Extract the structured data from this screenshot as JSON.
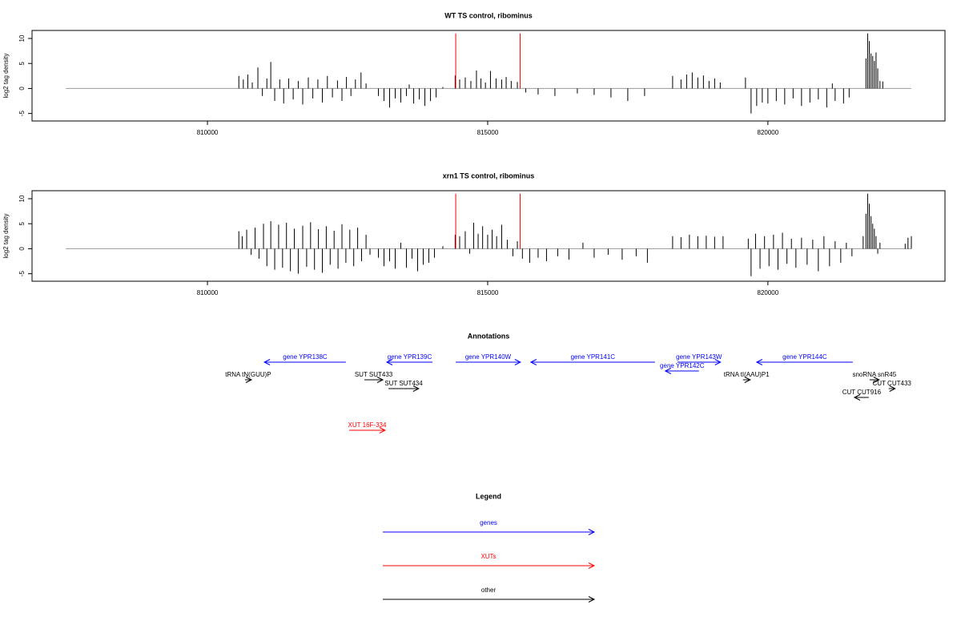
{
  "chart_data": [
    {
      "type": "bar",
      "title": "WT TS control, ribominus",
      "y_label": "log2 tag density",
      "color": "#000000",
      "xlim": [
        806870,
        823160
      ],
      "ylim": [
        -6.5,
        11.6
      ],
      "xticks": [
        810000,
        815000,
        820000
      ],
      "yticks": [
        10,
        5,
        0,
        -5
      ],
      "x": [
        810560,
        810640,
        810720,
        810800,
        810900,
        810980,
        811060,
        811130,
        811200,
        811290,
        811360,
        811450,
        811530,
        811620,
        811700,
        811800,
        811880,
        811970,
        812050,
        812140,
        812230,
        812320,
        812400,
        812480,
        812560,
        812640,
        812740,
        812830,
        813050,
        813150,
        813250,
        813350,
        813450,
        813550,
        813600,
        813680,
        813780,
        813880,
        813980,
        814080,
        814200,
        814420,
        814500,
        814600,
        814700,
        814800,
        814880,
        814960,
        815050,
        815150,
        815250,
        815330,
        815420,
        815530,
        815680,
        815900,
        816200,
        816600,
        816900,
        817200,
        817500,
        817800,
        818300,
        818450,
        818550,
        818650,
        818750,
        818850,
        818950,
        819050,
        819150,
        819600,
        819700,
        819800,
        819900,
        820000,
        820150,
        820300,
        820450,
        820600,
        820750,
        820900,
        821050,
        821150,
        821200,
        821350,
        821450,
        821750,
        821780,
        821810,
        821840,
        821870,
        821900,
        821930,
        821960,
        822000,
        822050
      ],
      "values": [
        2.5,
        1.8,
        2.8,
        1.2,
        4.2,
        -1.5,
        2.0,
        5.3,
        -2.5,
        1.8,
        -3.0,
        2.0,
        -2.2,
        1.5,
        -3.2,
        2.2,
        -2.0,
        1.8,
        -2.8,
        2.5,
        -1.8,
        1.6,
        -2.5,
        2.3,
        -1.5,
        1.8,
        3.2,
        1.0,
        -1.5,
        -2.5,
        -3.8,
        -2.0,
        -2.8,
        -1.5,
        0.8,
        -3.0,
        -2.2,
        -3.5,
        -2.5,
        -1.8,
        0.3,
        2.6,
        1.8,
        2.2,
        1.5,
        3.6,
        2.0,
        1.2,
        3.5,
        2.0,
        1.8,
        2.3,
        1.5,
        1.3,
        -0.8,
        -1.2,
        -1.5,
        -1.0,
        -1.3,
        -1.8,
        -2.5,
        -1.5,
        2.5,
        1.8,
        2.8,
        3.2,
        2.2,
        2.6,
        1.5,
        2.0,
        1.2,
        2.2,
        -5.0,
        -3.5,
        -2.8,
        -3.0,
        -2.5,
        -3.2,
        -2.0,
        -3.5,
        -2.8,
        -2.2,
        -3.8,
        1.0,
        -2.5,
        -3.0,
        -1.8,
        6.0,
        11.0,
        9.5,
        7.0,
        6.5,
        5.5,
        7.2,
        4.0,
        1.5,
        1.4
      ],
      "markers": {
        "x": [
          814430,
          815580
        ],
        "values": [
          11,
          11
        ],
        "color": "#ff0000"
      }
    },
    {
      "type": "bar",
      "title": "xrn1 TS control, ribominus",
      "y_label": "log2 tag density",
      "color": "#000000",
      "xlim": [
        806870,
        823160
      ],
      "ylim": [
        -6.5,
        11.6
      ],
      "xticks": [
        810000,
        815000,
        820000
      ],
      "yticks": [
        10,
        5,
        0,
        -5
      ],
      "x": [
        810560,
        810620,
        810700,
        810780,
        810850,
        810920,
        811000,
        811060,
        811130,
        811200,
        811270,
        811340,
        811410,
        811480,
        811550,
        811620,
        811700,
        811770,
        811840,
        811910,
        811980,
        812050,
        812120,
        812190,
        812260,
        812330,
        812400,
        812470,
        812540,
        812610,
        812680,
        812750,
        812830,
        812900,
        813050,
        813150,
        813250,
        813350,
        813450,
        813550,
        813650,
        813750,
        813850,
        813950,
        814050,
        814200,
        814420,
        814500,
        814600,
        814680,
        814750,
        814830,
        814910,
        815000,
        815080,
        815160,
        815250,
        815350,
        815450,
        815530,
        815620,
        815750,
        815900,
        816050,
        816250,
        816450,
        816700,
        816900,
        817150,
        817400,
        817650,
        817850,
        818300,
        818450,
        818600,
        818750,
        818900,
        819050,
        819200,
        819650,
        819700,
        819780,
        819860,
        819940,
        820020,
        820100,
        820180,
        820260,
        820340,
        820420,
        820500,
        820600,
        820700,
        820800,
        820900,
        821000,
        821100,
        821200,
        821300,
        821400,
        821500,
        821700,
        821750,
        821780,
        821810,
        821840,
        821870,
        821900,
        821930,
        821960,
        822000,
        822450,
        822500,
        822560
      ],
      "values": [
        3.5,
        2.5,
        3.8,
        -1.2,
        4.2,
        -2.0,
        5.0,
        -3.5,
        5.5,
        -4.2,
        4.8,
        -3.8,
        5.2,
        -4.5,
        4.0,
        -5.0,
        4.6,
        -3.6,
        5.3,
        -4.2,
        3.9,
        -4.8,
        4.5,
        -3.2,
        3.6,
        -4.0,
        4.9,
        -2.8,
        3.8,
        -3.5,
        4.2,
        -2.5,
        2.8,
        -1.2,
        -1.8,
        -3.5,
        -2.5,
        -4.0,
        1.2,
        -3.8,
        -2.0,
        -4.5,
        -3.2,
        -2.8,
        -1.8,
        0.5,
        2.8,
        2.5,
        3.5,
        -1.0,
        5.2,
        3.0,
        4.5,
        2.8,
        3.8,
        2.5,
        4.8,
        1.8,
        -1.5,
        1.5,
        -2.0,
        -2.8,
        -1.8,
        -2.5,
        -1.5,
        -2.2,
        1.2,
        -1.8,
        -1.2,
        -2.2,
        -1.5,
        -2.8,
        2.5,
        2.3,
        2.8,
        2.5,
        2.6,
        2.4,
        2.5,
        2.0,
        -5.5,
        3.0,
        -4.0,
        2.5,
        -3.5,
        2.8,
        -4.2,
        3.2,
        -3.0,
        2.0,
        -3.8,
        2.2,
        -3.2,
        1.8,
        -4.5,
        2.5,
        -3.5,
        1.5,
        -2.8,
        1.2,
        -1.5,
        2.5,
        7.0,
        11.0,
        9.0,
        6.5,
        5.0,
        4.0,
        2.5,
        -1.0,
        1.2,
        1.0,
        2.2,
        2.5
      ],
      "markers": {
        "x": [
          814430,
          815580
        ],
        "values": [
          11,
          11
        ],
        "color": "#ff0000"
      }
    }
  ],
  "annotations": {
    "title": "Annotations",
    "features": [
      {
        "label": "gene YPR140W",
        "start": 814430,
        "end": 815585,
        "strand": "+",
        "color": "#0000ff"
      },
      {
        "label": "gene YPR143W",
        "start": 818385,
        "end": 819155,
        "strand": "+",
        "color": "#0000ff"
      },
      {
        "label": "gene YPR138C",
        "start": 811015,
        "end": 812470,
        "strand": "-",
        "color": "#0000ff"
      },
      {
        "label": "gene YPR139C",
        "start": 813200,
        "end": 814015,
        "strand": "-",
        "color": "#0000ff"
      },
      {
        "label": "gene YPR141C",
        "start": 815770,
        "end": 817985,
        "strand": "-",
        "color": "#0000ff"
      },
      {
        "label": "gene YPR142C",
        "start": 818170,
        "end": 818770,
        "strand": "-",
        "color": "#0000ff"
      },
      {
        "label": "gene YPR144C",
        "start": 819800,
        "end": 821515,
        "strand": "-",
        "color": "#0000ff"
      },
      {
        "label": "tRNA tN(GUU)P",
        "start": 810670,
        "end": 810785,
        "strand": "+",
        "color": "#000000"
      },
      {
        "label": "tRNA tI(AAU)P1",
        "start": 819555,
        "end": 819685,
        "strand": "+",
        "color": "#000000"
      },
      {
        "label": "snoRNA snR45",
        "start": 821815,
        "end": 821985,
        "strand": "+",
        "color": "#000000"
      },
      {
        "label": "SUT SUT433",
        "start": 812800,
        "end": 813130,
        "strand": "+",
        "color": "#000000"
      },
      {
        "label": "SUT SUT434",
        "start": 813230,
        "end": 813770,
        "strand": "+",
        "color": "#000000"
      },
      {
        "label": "CUT CUT433",
        "start": 822155,
        "end": 822270,
        "strand": "+",
        "color": "#000000"
      },
      {
        "label": "CUT CUT916",
        "start": 821545,
        "end": 821800,
        "strand": "-",
        "color": "#000000"
      },
      {
        "label": "XUT 16F-334",
        "start": 812530,
        "end": 813170,
        "strand": "+",
        "color": "#ff0000"
      }
    ]
  },
  "legend": {
    "title": "Legend",
    "items": [
      {
        "label": "genes",
        "color": "#0000ff"
      },
      {
        "label": "XUTs",
        "color": "#ff0000"
      },
      {
        "label": "other",
        "color": "#000000"
      }
    ]
  }
}
